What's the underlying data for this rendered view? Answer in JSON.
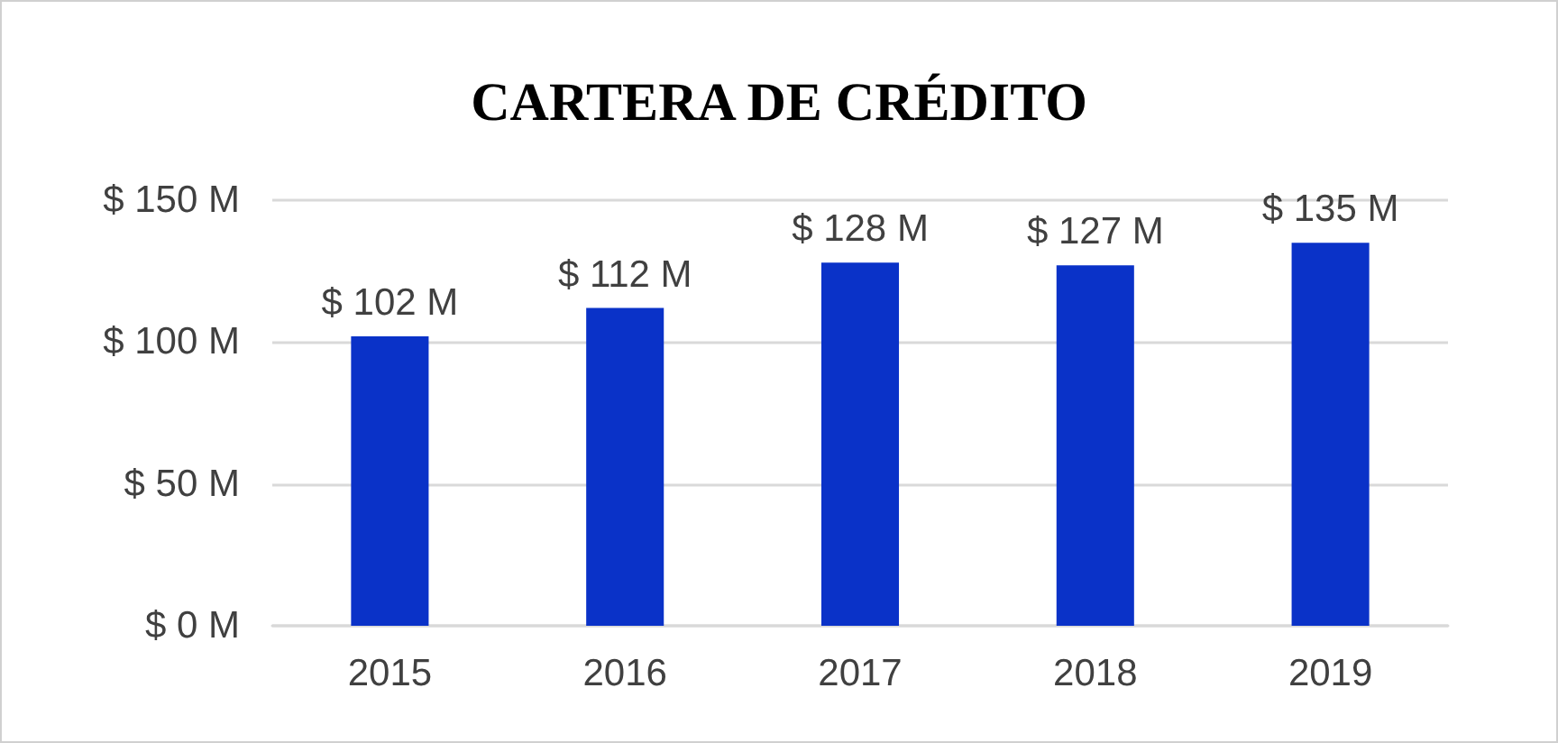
{
  "chart_data": {
    "type": "bar",
    "title": "CARTERA DE CRÉDITO",
    "categories": [
      "2015",
      "2016",
      "2017",
      "2018",
      "2019"
    ],
    "values": [
      102,
      112,
      128,
      127,
      135
    ],
    "color": "#0a32c8",
    "value_labels": [
      "$ 102 M",
      "$ 112 M",
      "$ 128 M",
      "$ 127 M",
      "$ 135 M"
    ],
    "ylim": [
      0,
      150
    ],
    "yticks": [
      {
        "value": 0,
        "label": "$ 0 M"
      },
      {
        "value": 50,
        "label": "$ 50 M"
      },
      {
        "value": 100,
        "label": "$ 100 M"
      },
      {
        "value": 150,
        "label": "$ 150 M"
      }
    ],
    "grid": "y"
  }
}
